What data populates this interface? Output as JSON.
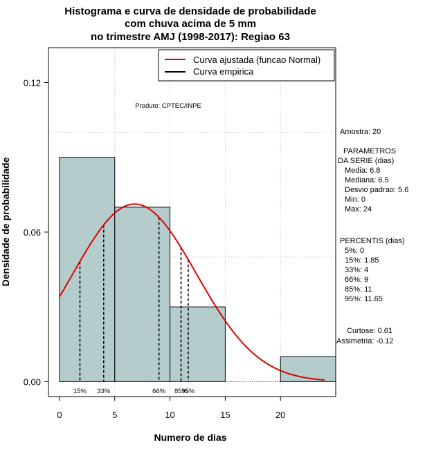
{
  "chart_data": {
    "type": "histogram",
    "title_lines": [
      "Histograma e curva de densidade de probabilidade",
      "com chuva acima de 5 mm",
      "no trimestre AMJ (1998-2017): Regiao 63"
    ],
    "xlabel": "Numero de dias",
    "ylabel": "Densidade de probabilidade",
    "xlim": [
      -1,
      25
    ],
    "ylim": [
      -0.006,
      0.134
    ],
    "x_ticks": [
      0,
      5,
      10,
      15,
      20
    ],
    "x_tick_labels": [
      "0",
      "5",
      "10",
      "15",
      "20"
    ],
    "y_ticks": [
      0.0,
      0.06,
      0.12
    ],
    "y_tick_labels": [
      "0.00",
      "0.06",
      "0.12"
    ],
    "grid_x": [
      5,
      10,
      15,
      20
    ],
    "grid_y": [
      0.05,
      0.1
    ],
    "bins": [
      {
        "from": 0,
        "to": 5,
        "density": 0.09
      },
      {
        "from": 5,
        "to": 10,
        "density": 0.07
      },
      {
        "from": 10,
        "to": 15,
        "density": 0.03
      },
      {
        "from": 15,
        "to": 20,
        "density": 0.0
      },
      {
        "from": 20,
        "to": 25,
        "density": 0.01
      }
    ],
    "bar_color": "#b5cccd",
    "curve_color": "#dd0000",
    "normal_mean": 6.8,
    "normal_sd": 5.6,
    "curve_x_range": [
      0,
      24
    ],
    "percentile_lines": [
      {
        "label": "15%",
        "x": 1.85
      },
      {
        "label": "33%",
        "x": 4
      },
      {
        "label": "66%",
        "x": 9
      },
      {
        "label": "85%",
        "x": 11
      },
      {
        "label": "95%",
        "x": 11.65
      }
    ],
    "legend": [
      {
        "label": "Curva ajustada (funcao Normal)",
        "color": "#dd0000"
      },
      {
        "label": "Curva empirica",
        "color": "#000000"
      }
    ],
    "annotation": "Produto: CPTEC/INPE"
  },
  "side_panel": {
    "amostra": "Amostra: 20",
    "param_lines": [
      "PARAMETROS",
      "DA SERIE (dias)"
    ],
    "stats": [
      "Media: 6.8",
      "Mediana: 6.5",
      "Desvio padrao: 5.6",
      "Min: 0",
      "Max: 24"
    ],
    "percentis_title": "PERCENTIS (dias)",
    "percentis": [
      "5%: 0",
      "15%: 1.85",
      "33%: 4",
      "66%: 9",
      "85%: 11",
      "95%: 11.65"
    ],
    "curtose": "Curtose: 0.61",
    "assimetria": "Assimetria: -0.12"
  }
}
